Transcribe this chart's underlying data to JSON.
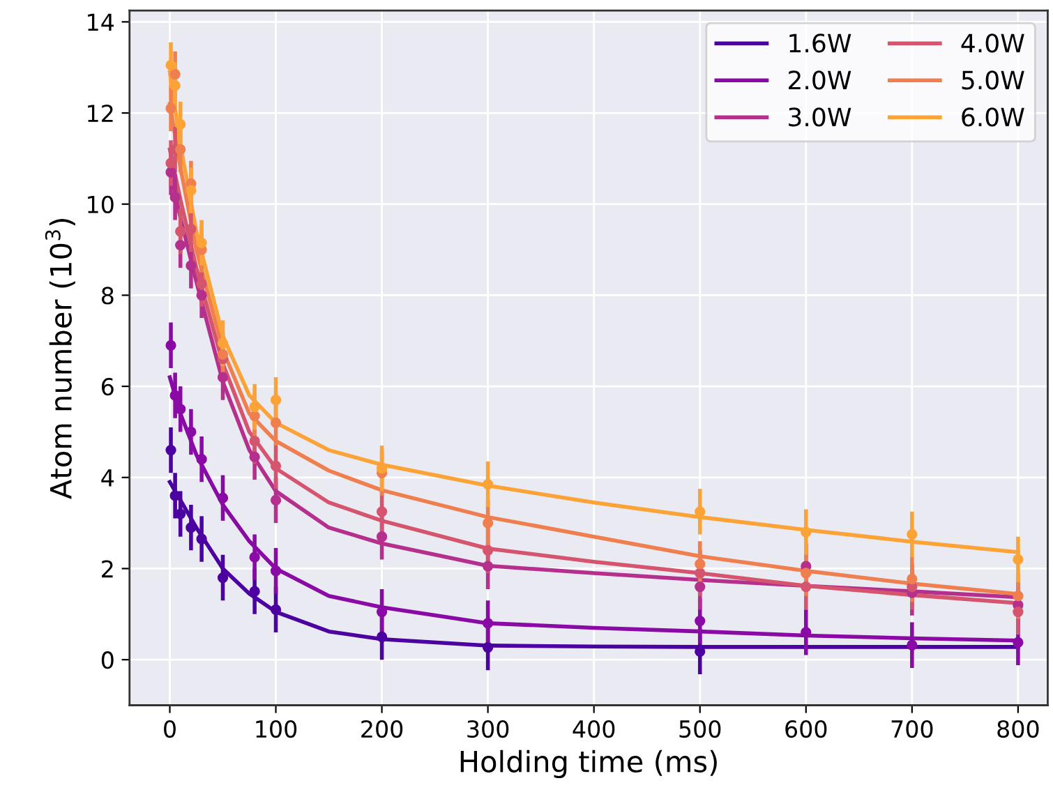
{
  "chart_data": {
    "type": "scatter",
    "xlabel": "Holding time (ms)",
    "ylabel": "Atom number (10$^{3}$)",
    "x": [
      1,
      5,
      10,
      20,
      30,
      50,
      80,
      100,
      200,
      300,
      500,
      600,
      700,
      800
    ],
    "xlim": [
      -38,
      828
    ],
    "ylim": [
      -1.0,
      14.25
    ],
    "xticks": [
      0,
      100,
      200,
      300,
      400,
      500,
      600,
      700,
      800
    ],
    "yticks": [
      0,
      2,
      4,
      6,
      8,
      10,
      12,
      14
    ],
    "grid": true,
    "legend": "top right",
    "series": [
      {
        "name": "1.6W",
        "color": "#4c02a1",
        "marker": "circle",
        "values": [
          4.6,
          3.6,
          3.2,
          2.9,
          2.65,
          1.8,
          1.5,
          1.1,
          0.5,
          0.27,
          0.18,
          null,
          null,
          null
        ],
        "errors": [
          0.5,
          0.5,
          0.5,
          0.5,
          0.5,
          0.5,
          0.5,
          0.5,
          0.5,
          0.5,
          0.5,
          null,
          null,
          null
        ]
      },
      {
        "name": "2.0W",
        "color": "#8a0aa5",
        "marker": "circle",
        "values": [
          6.9,
          5.8,
          5.5,
          5.0,
          4.4,
          3.55,
          2.25,
          1.95,
          1.05,
          0.8,
          0.85,
          0.6,
          0.32,
          0.38
        ],
        "errors": [
          0.5,
          0.5,
          0.5,
          0.5,
          0.5,
          0.5,
          0.5,
          0.5,
          0.5,
          0.5,
          0.5,
          0.5,
          0.5,
          0.5
        ]
      },
      {
        "name": "3.0W",
        "color": "#b52f8c",
        "marker": "circle",
        "values": [
          10.7,
          10.15,
          9.1,
          8.65,
          8.0,
          6.2,
          4.45,
          3.5,
          2.7,
          2.05,
          1.6,
          2.05,
          1.47,
          1.2
        ],
        "errors": [
          0.5,
          0.5,
          0.5,
          0.5,
          0.5,
          0.5,
          0.5,
          0.5,
          0.5,
          0.5,
          0.5,
          0.5,
          0.5,
          0.5
        ]
      },
      {
        "name": "4.0W",
        "color": "#d5546e",
        "marker": "circle",
        "values": [
          10.9,
          11.2,
          9.4,
          9.45,
          8.25,
          6.6,
          4.8,
          4.25,
          3.25,
          2.4,
          1.9,
          1.6,
          1.6,
          1.05
        ],
        "errors": [
          0.5,
          0.5,
          0.5,
          0.5,
          0.5,
          0.5,
          0.5,
          0.5,
          0.5,
          0.5,
          0.5,
          0.5,
          0.5,
          0.5
        ]
      },
      {
        "name": "5.0W",
        "color": "#f07f4f",
        "marker": "circle",
        "values": [
          12.1,
          12.85,
          11.2,
          10.45,
          9.0,
          6.7,
          5.35,
          5.2,
          4.1,
          3.0,
          2.1,
          1.9,
          1.77,
          1.4
        ],
        "errors": [
          0.5,
          0.5,
          0.5,
          0.5,
          0.5,
          0.5,
          0.5,
          0.5,
          0.5,
          0.5,
          0.5,
          0.5,
          0.5,
          0.5
        ]
      },
      {
        "name": "6.0W",
        "color": "#fca338",
        "marker": "circle",
        "values": [
          13.05,
          12.6,
          11.75,
          10.3,
          9.15,
          6.95,
          5.55,
          5.7,
          4.2,
          3.85,
          3.25,
          2.8,
          2.75,
          2.2
        ],
        "errors": [
          0.5,
          0.5,
          0.5,
          0.5,
          0.5,
          0.5,
          0.5,
          0.5,
          0.5,
          0.5,
          0.5,
          0.5,
          0.5,
          0.5
        ]
      },
      {
        "type": "line",
        "color": "#4c02a1",
        "x": [
          0,
          10,
          25,
          50,
          75,
          100,
          150,
          200,
          300,
          400,
          500,
          600,
          700,
          800
        ],
        "values": [
          3.9,
          3.5,
          2.9,
          2.0,
          1.45,
          1.05,
          0.62,
          0.45,
          0.31,
          0.29,
          0.28,
          0.28,
          0.28,
          0.28
        ]
      },
      {
        "type": "line",
        "color": "#8a0aa5",
        "x": [
          0,
          10,
          25,
          50,
          75,
          100,
          150,
          200,
          300,
          400,
          500,
          600,
          700,
          800
        ],
        "values": [
          6.2,
          5.4,
          4.5,
          3.4,
          2.6,
          2.0,
          1.4,
          1.15,
          0.8,
          0.7,
          0.62,
          0.53,
          0.47,
          0.42
        ]
      },
      {
        "type": "line",
        "color": "#b52f8c",
        "x": [
          0,
          10,
          25,
          50,
          75,
          100,
          150,
          200,
          300,
          400,
          500,
          600,
          700,
          800
        ],
        "values": [
          10.8,
          9.7,
          8.3,
          6.1,
          4.6,
          3.7,
          2.9,
          2.55,
          2.06,
          1.9,
          1.75,
          1.62,
          1.5,
          1.37
        ]
      },
      {
        "type": "line",
        "color": "#d5546e",
        "x": [
          0,
          10,
          25,
          50,
          75,
          100,
          150,
          200,
          300,
          400,
          500,
          600,
          700,
          800
        ],
        "values": [
          11.2,
          10.1,
          8.6,
          6.5,
          5.0,
          4.2,
          3.45,
          3.05,
          2.44,
          2.15,
          1.9,
          1.62,
          1.42,
          1.24
        ]
      },
      {
        "type": "line",
        "color": "#f07f4f",
        "x": [
          0,
          10,
          25,
          50,
          75,
          100,
          150,
          200,
          300,
          400,
          500,
          600,
          700,
          800
        ],
        "values": [
          12.2,
          10.8,
          9.0,
          6.8,
          5.4,
          4.8,
          4.15,
          3.72,
          3.13,
          2.7,
          2.27,
          1.95,
          1.67,
          1.44
        ]
      },
      {
        "type": "line",
        "color": "#fca338",
        "x": [
          0,
          10,
          25,
          50,
          75,
          100,
          150,
          200,
          300,
          400,
          500,
          600,
          700,
          800
        ],
        "values": [
          12.9,
          11.3,
          9.4,
          7.1,
          5.8,
          5.2,
          4.6,
          4.28,
          3.82,
          3.45,
          3.13,
          2.85,
          2.59,
          2.36
        ]
      }
    ]
  }
}
